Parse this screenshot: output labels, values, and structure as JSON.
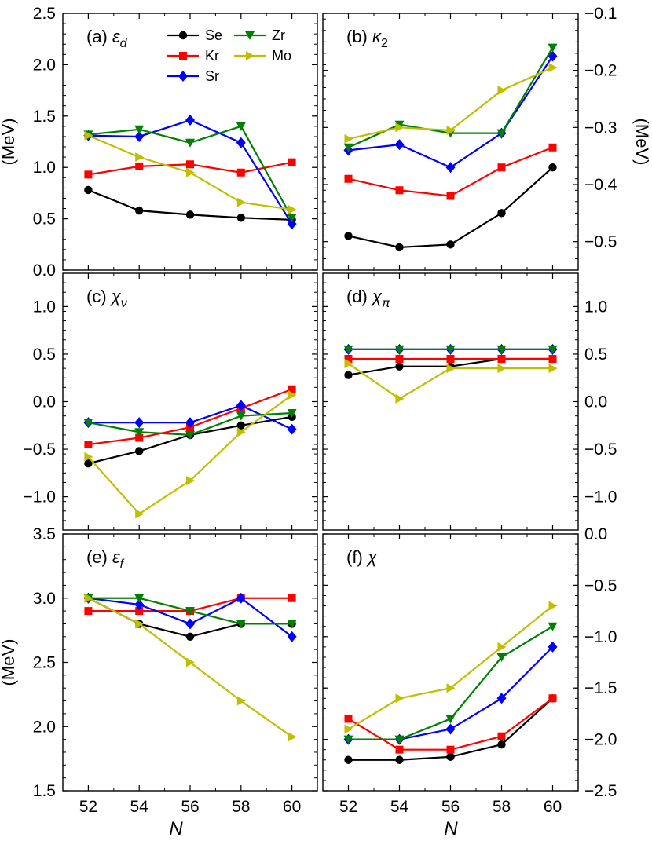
{
  "legend": [
    {
      "name": "Se",
      "color": "#000000",
      "marker": "circle"
    },
    {
      "name": "Kr",
      "color": "#ff0000",
      "marker": "square"
    },
    {
      "name": "Sr",
      "color": "#0000ff",
      "marker": "diamond"
    },
    {
      "name": "Zr",
      "color": "#008000",
      "marker": "triangle-down"
    },
    {
      "name": "Mo",
      "color": "#bfbf00",
      "marker": "triangle-right"
    }
  ],
  "x_axis_title": "N",
  "chart_data": [
    {
      "type": "line",
      "panel": "a",
      "title": "(a) ε",
      "title_sub": "d",
      "ylabel": "(MeV)",
      "ylim": [
        0,
        2.5
      ],
      "yticks": [
        "0.0",
        "0.5",
        "1.0",
        "1.5",
        "2.0",
        "2.5"
      ],
      "xticks": [
        "52",
        "54",
        "56",
        "58",
        "60"
      ],
      "xlim": [
        51,
        61
      ],
      "x": [
        52,
        54,
        56,
        58,
        60
      ],
      "series": [
        {
          "name": "Se",
          "values": [
            0.78,
            0.58,
            0.54,
            0.51,
            0.49
          ]
        },
        {
          "name": "Kr",
          "values": [
            0.93,
            1.01,
            1.03,
            0.95,
            1.05
          ]
        },
        {
          "name": "Sr",
          "values": [
            1.31,
            1.3,
            1.46,
            1.24,
            0.45
          ]
        },
        {
          "name": "Zr",
          "values": [
            1.32,
            1.37,
            1.24,
            1.4,
            0.51
          ]
        },
        {
          "name": "Mo",
          "values": [
            1.31,
            1.1,
            0.95,
            0.66,
            0.59
          ]
        }
      ]
    },
    {
      "type": "line",
      "panel": "b",
      "title": "(b) κ",
      "title_sub": "2",
      "ylabel": "(MeV)",
      "ylim": [
        -0.55,
        -0.1
      ],
      "yticks": [
        "−0.5",
        "−0.4",
        "−0.3",
        "−0.2",
        "−0.1"
      ],
      "xticks": [
        "52",
        "54",
        "56",
        "58",
        "60"
      ],
      "xlim": [
        51,
        61
      ],
      "x": [
        52,
        54,
        56,
        58,
        60
      ],
      "series": [
        {
          "name": "Se",
          "values": [
            -0.49,
            -0.51,
            -0.505,
            -0.45,
            -0.37
          ]
        },
        {
          "name": "Kr",
          "values": [
            -0.39,
            -0.41,
            -0.42,
            -0.37,
            -0.335
          ]
        },
        {
          "name": "Sr",
          "values": [
            -0.34,
            -0.33,
            -0.37,
            -0.31,
            -0.175
          ]
        },
        {
          "name": "Zr",
          "values": [
            -0.335,
            -0.295,
            -0.31,
            -0.31,
            -0.16
          ]
        },
        {
          "name": "Mo",
          "values": [
            -0.32,
            -0.3,
            -0.305,
            -0.235,
            -0.195
          ]
        }
      ]
    },
    {
      "type": "line",
      "panel": "c",
      "title": "(c) χ",
      "title_sub": "ν",
      "ylabel": "",
      "ylim": [
        -1.35,
        1.35
      ],
      "yticks": [
        "−1.0",
        "−0.5",
        "0.0",
        "0.5",
        "1.0"
      ],
      "xticks": [
        "52",
        "54",
        "56",
        "58",
        "60"
      ],
      "xlim": [
        51,
        61
      ],
      "x": [
        52,
        54,
        56,
        58,
        60
      ],
      "series": [
        {
          "name": "Se",
          "values": [
            -0.65,
            -0.52,
            -0.35,
            -0.25,
            -0.16
          ]
        },
        {
          "name": "Kr",
          "values": [
            -0.45,
            -0.38,
            -0.27,
            -0.07,
            0.13
          ]
        },
        {
          "name": "Sr",
          "values": [
            -0.22,
            -0.22,
            -0.22,
            -0.04,
            -0.29
          ]
        },
        {
          "name": "Zr",
          "values": [
            -0.22,
            -0.32,
            -0.35,
            -0.15,
            -0.12
          ]
        },
        {
          "name": "Mo",
          "values": [
            -0.58,
            -1.18,
            -0.83,
            -0.32,
            0.07
          ]
        }
      ]
    },
    {
      "type": "line",
      "panel": "d",
      "title": "(d) χ",
      "title_sub": "π",
      "ylabel": "",
      "ylim": [
        -1.35,
        1.35
      ],
      "yticks": [
        "−1.0",
        "−0.5",
        "0.0",
        "0.5",
        "1.0"
      ],
      "xticks": [
        "52",
        "54",
        "56",
        "58",
        "60"
      ],
      "xlim": [
        51,
        61
      ],
      "x": [
        52,
        54,
        56,
        58,
        60
      ],
      "series": [
        {
          "name": "Se",
          "values": [
            0.28,
            0.37,
            0.37,
            0.45,
            0.45
          ]
        },
        {
          "name": "Kr",
          "values": [
            0.45,
            0.45,
            0.45,
            0.45,
            0.45
          ]
        },
        {
          "name": "Sr",
          "values": [
            0.55,
            0.55,
            0.55,
            0.55,
            0.55
          ]
        },
        {
          "name": "Zr",
          "values": [
            0.55,
            0.55,
            0.55,
            0.55,
            0.55
          ]
        },
        {
          "name": "Mo",
          "values": [
            0.4,
            0.03,
            0.35,
            0.35,
            0.35
          ]
        }
      ]
    },
    {
      "type": "line",
      "panel": "e",
      "title": "(e) ε",
      "title_sub": "f",
      "ylabel": "(MeV)",
      "ylim": [
        1.5,
        3.5
      ],
      "yticks": [
        "1.5",
        "2.0",
        "2.5",
        "3.0",
        "3.5"
      ],
      "xticks": [
        "52",
        "54",
        "56",
        "58",
        "60"
      ],
      "xlim": [
        51,
        61
      ],
      "x": [
        52,
        54,
        56,
        58,
        60
      ],
      "series": [
        {
          "name": "Se",
          "values": [
            3.0,
            2.8,
            2.7,
            2.8,
            2.8
          ]
        },
        {
          "name": "Kr",
          "values": [
            2.9,
            2.9,
            2.9,
            3.0,
            3.0
          ]
        },
        {
          "name": "Sr",
          "values": [
            3.0,
            2.95,
            2.8,
            3.0,
            2.7
          ]
        },
        {
          "name": "Zr",
          "values": [
            3.0,
            3.0,
            2.9,
            2.8,
            2.8
          ]
        },
        {
          "name": "Mo",
          "values": [
            3.0,
            2.8,
            2.5,
            2.2,
            1.92
          ]
        }
      ]
    },
    {
      "type": "line",
      "panel": "f",
      "title": "(f) χ",
      "title_sub": "",
      "ylabel": "",
      "ylim": [
        -2.5,
        0.0
      ],
      "yticks": [
        "−2.5",
        "−2.0",
        "−1.5",
        "−1.0",
        "−0.5",
        "0.0"
      ],
      "xticks": [
        "52",
        "54",
        "56",
        "58",
        "60"
      ],
      "xlim": [
        51,
        61
      ],
      "x": [
        52,
        54,
        56,
        58,
        60
      ],
      "series": [
        {
          "name": "Se",
          "values": [
            -2.2,
            -2.2,
            -2.17,
            -2.05,
            -1.6
          ]
        },
        {
          "name": "Kr",
          "values": [
            -1.8,
            -2.1,
            -2.1,
            -1.97,
            -1.6
          ]
        },
        {
          "name": "Sr",
          "values": [
            -2.0,
            -2.0,
            -1.9,
            -1.6,
            -1.1
          ]
        },
        {
          "name": "Zr",
          "values": [
            -2.0,
            -2.0,
            -1.8,
            -1.2,
            -0.9
          ]
        },
        {
          "name": "Mo",
          "values": [
            -1.9,
            -1.6,
            -1.5,
            -1.1,
            -0.7
          ]
        }
      ]
    }
  ]
}
